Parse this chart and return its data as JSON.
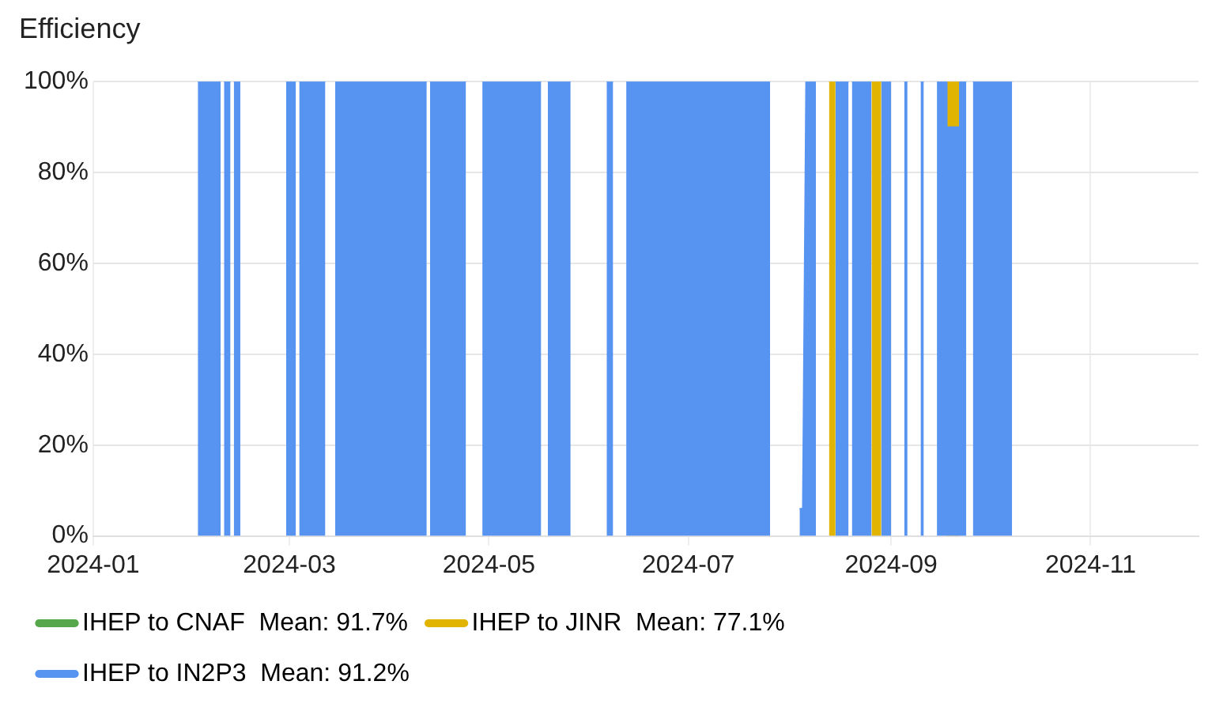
{
  "chart_data": {
    "type": "area",
    "title": "Efficiency",
    "xlim": [
      "2024-01-01",
      "2024-12-04"
    ],
    "xticks": [
      "2024-01",
      "2024-03",
      "2024-05",
      "2024-07",
      "2024-09",
      "2024-11"
    ],
    "ylim": [
      0,
      100
    ],
    "yticks": [
      {
        "value": 0,
        "label": "0%"
      },
      {
        "value": 20,
        "label": "20%"
      },
      {
        "value": 40,
        "label": "40%"
      },
      {
        "value": 60,
        "label": "60%"
      },
      {
        "value": 80,
        "label": "80%"
      },
      {
        "value": 100,
        "label": "100%"
      }
    ],
    "grid": true,
    "legend": "bottom left",
    "series": [
      {
        "name": "IHEP to CNAF  Mean: 91.7%",
        "color": "#56a64b"
      },
      {
        "name": "IHEP to JINR  Mean: 77.1%",
        "color": "#e0b400",
        "x": [
          "2024-08-13",
          "2024-08-15"
        ],
        "values": [
          100,
          100
        ]
      },
      {
        "color": "#e0b400",
        "x": [
          "2024-08-26",
          "2024-08-29"
        ],
        "values": [
          100,
          100
        ]
      },
      {
        "color": "#e0b400",
        "x": [
          "2024-09-18",
          "2024-09-22"
        ],
        "values": [
          100,
          100
        ]
      },
      {
        "name": "IHEP to IN2P3  Mean: 91.2%",
        "color": "#5794f2",
        "x": [
          "2024-02-02",
          "2024-02-09"
        ],
        "values": [
          100,
          100
        ]
      },
      {
        "color": "#5794f2",
        "x": [
          "2024-02-10",
          "2024-02-12"
        ],
        "values": [
          100,
          100
        ]
      },
      {
        "color": "#5794f2",
        "x": [
          "2024-02-13",
          "2024-02-15"
        ],
        "values": [
          100,
          100
        ]
      },
      {
        "color": "#5794f2",
        "x": [
          "2024-02-29",
          "2024-03-03"
        ],
        "values": [
          100,
          100
        ]
      },
      {
        "color": "#5794f2",
        "x": [
          "2024-03-04",
          "2024-03-12"
        ],
        "values": [
          100,
          100
        ]
      },
      {
        "color": "#5794f2",
        "x": [
          "2024-03-15",
          "2024-04-12"
        ],
        "values": [
          100,
          100
        ]
      },
      {
        "color": "#5794f2",
        "x": [
          "2024-04-13",
          "2024-04-24"
        ],
        "values": [
          100,
          100
        ]
      },
      {
        "color": "#5794f2",
        "x": [
          "2024-04-29",
          "2024-05-17"
        ],
        "values": [
          100,
          100
        ]
      },
      {
        "color": "#5794f2",
        "x": [
          "2024-05-19",
          "2024-05-26"
        ],
        "values": [
          100,
          100
        ]
      },
      {
        "color": "#5794f2",
        "x": [
          "2024-06-06",
          "2024-06-08"
        ],
        "values": [
          100,
          100
        ]
      },
      {
        "color": "#5794f2",
        "x": [
          "2024-06-12",
          "2024-07-26"
        ],
        "values": [
          100,
          100
        ]
      },
      {
        "color": "#5794f2",
        "x": [
          "2024-08-04",
          "2024-08-05",
          "2024-08-06",
          "2024-08-09"
        ],
        "values": [
          6,
          6,
          100,
          100
        ]
      },
      {
        "color": "#5794f2",
        "x": [
          "2024-08-15",
          "2024-08-19"
        ],
        "values": [
          100,
          100
        ]
      },
      {
        "color": "#5794f2",
        "x": [
          "2024-08-20",
          "2024-08-26"
        ],
        "values": [
          100,
          100
        ]
      },
      {
        "color": "#5794f2",
        "x": [
          "2024-08-29",
          "2024-09-01"
        ],
        "values": [
          100,
          100
        ]
      },
      {
        "color": "#5794f2",
        "x": [
          "2024-09-05",
          "2024-09-06"
        ],
        "values": [
          100,
          100
        ]
      },
      {
        "color": "#5794f2",
        "x": [
          "2024-09-10",
          "2024-09-11"
        ],
        "values": [
          100,
          100
        ]
      },
      {
        "color": "#5794f2",
        "x": [
          "2024-09-15",
          "2024-09-18",
          "2024-09-18",
          "2024-09-22",
          "2024-09-22",
          "2024-09-24"
        ],
        "values": [
          100,
          100,
          90,
          90,
          100,
          100
        ]
      },
      {
        "color": "#5794f2",
        "x": [
          "2024-09-26",
          "2024-10-08"
        ],
        "values": [
          100,
          100
        ]
      }
    ]
  }
}
